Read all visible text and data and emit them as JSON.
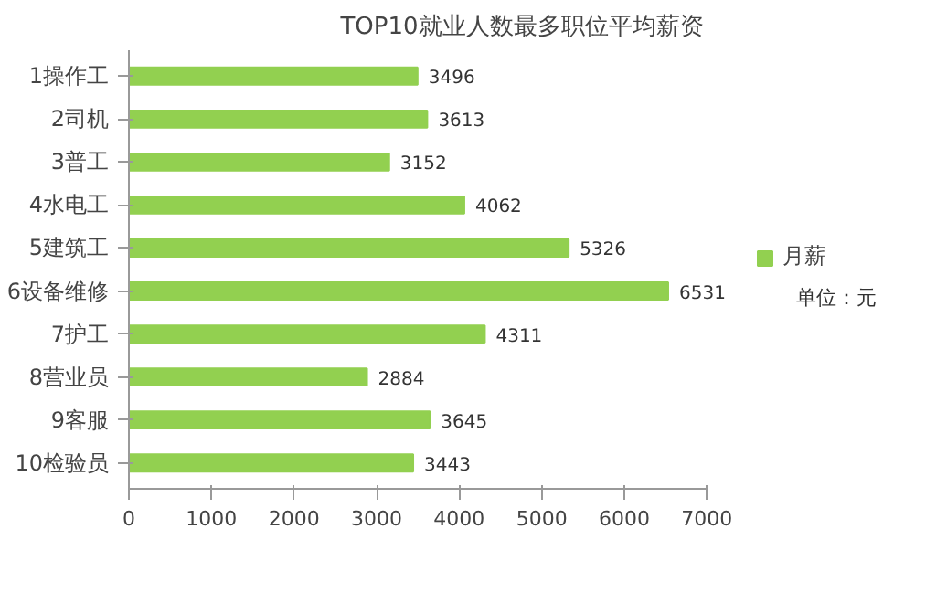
{
  "chart_data": {
    "type": "bar",
    "orientation": "horizontal",
    "title": "TOP10就业人数最多职位平均薪资",
    "categories": [
      "1操作工",
      "2司机",
      "3普工",
      "4水电工",
      "5建筑工",
      "6设备维修",
      "7护工",
      "8营业员",
      "9客服",
      "10检验员"
    ],
    "series": [
      {
        "name": "月薪",
        "color": "#92d050",
        "values": [
          3496,
          3613,
          3152,
          4062,
          5326,
          6531,
          4311,
          2884,
          3645,
          3443
        ]
      }
    ],
    "xlim": [
      0,
      7000
    ],
    "xticks": [
      0,
      1000,
      2000,
      3000,
      4000,
      5000,
      6000,
      7000
    ],
    "data_labels": true,
    "grid": false,
    "legend": "right",
    "annotations": [
      "单位：元"
    ]
  }
}
